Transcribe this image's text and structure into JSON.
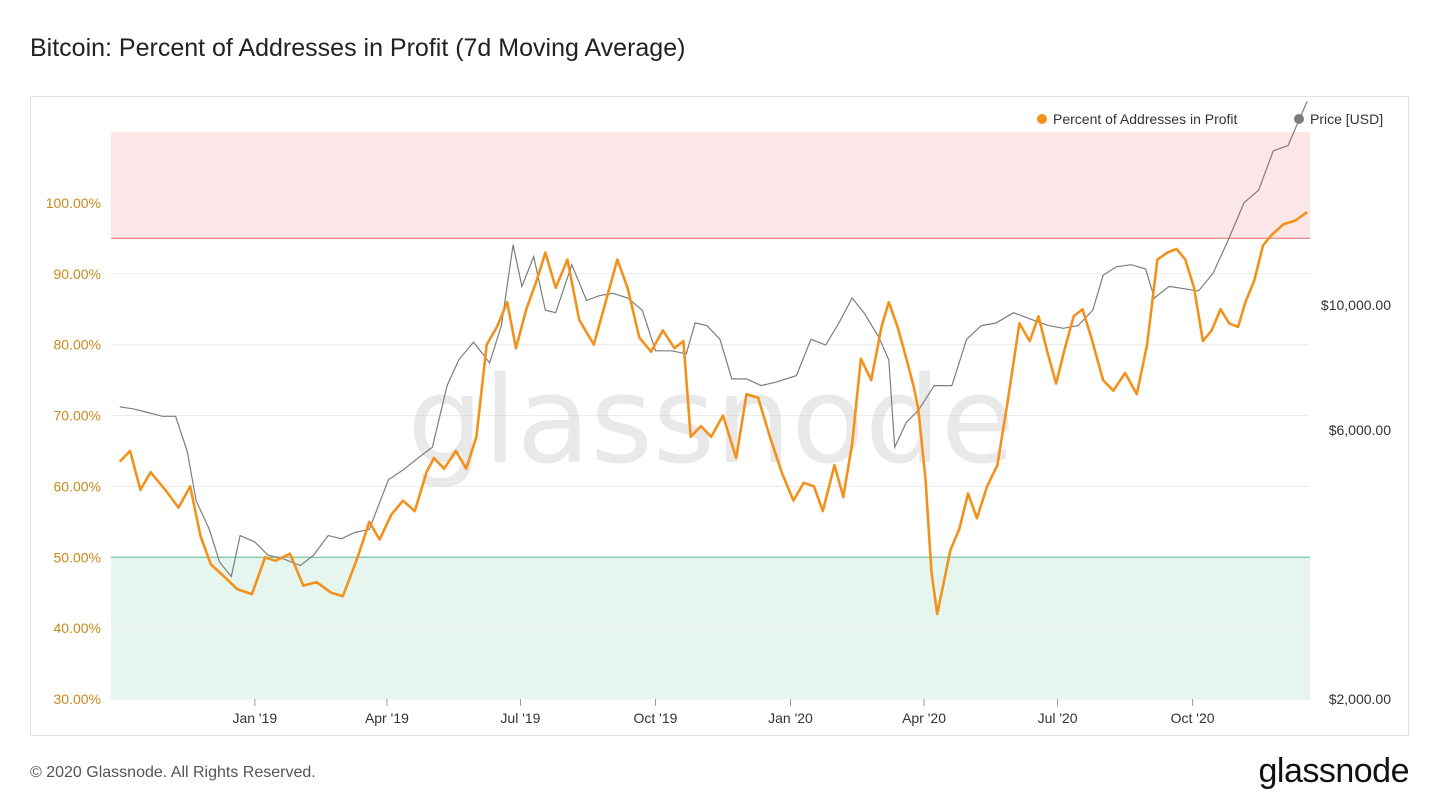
{
  "title": "Bitcoin: Percent of Addresses in Profit (7d Moving Average)",
  "footer": "© 2020 Glassnode. All Rights Reserved.",
  "brand": "glassnode",
  "watermark": "glassnode",
  "colors": {
    "profit": "#f2921d",
    "price": "#7d7d7d",
    "upper_zone": "#fde6e7",
    "upper_line": "#e57b7e",
    "lower_zone": "#e6f6ee",
    "lower_line": "#7cc7a0",
    "grid": "#ececec"
  },
  "chart_data": {
    "type": "line",
    "x_ticks": [
      "Jan '19",
      "Apr '19",
      "Jul '19",
      "Oct '19",
      "Jan '20",
      "Apr '20",
      "Jul '20",
      "Oct '20"
    ],
    "y_left_ticks": [
      "30.00%",
      "40.00%",
      "50.00%",
      "60.00%",
      "70.00%",
      "80.00%",
      "90.00%",
      "100.00%"
    ],
    "y_left_lim": [
      30,
      110
    ],
    "y_right_ticks": [
      "$2,000.00",
      "$6,000.00",
      "$10,000.00"
    ],
    "y_right_scale": "log",
    "y_right_lim": [
      2000,
      20300
    ],
    "bands": {
      "upper_threshold": 95,
      "lower_threshold": 50
    },
    "legend_position": "top-right",
    "grid": true,
    "series": [
      {
        "name": "Percent of Addresses in Profit",
        "axis": "left",
        "points": [
          [
            "2018-10-01",
            63.5
          ],
          [
            "2018-10-08",
            65
          ],
          [
            "2018-10-15",
            59.5
          ],
          [
            "2018-10-22",
            62
          ],
          [
            "2018-11-01",
            59.5
          ],
          [
            "2018-11-10",
            57
          ],
          [
            "2018-11-18",
            60
          ],
          [
            "2018-11-25",
            53
          ],
          [
            "2018-12-02",
            49
          ],
          [
            "2018-12-10",
            47.5
          ],
          [
            "2018-12-20",
            45.5
          ],
          [
            "2018-12-30",
            44.8
          ],
          [
            "2019-01-08",
            50
          ],
          [
            "2019-01-15",
            49.5
          ],
          [
            "2019-01-25",
            50.5
          ],
          [
            "2019-02-03",
            46
          ],
          [
            "2019-02-12",
            46.5
          ],
          [
            "2019-02-22",
            45
          ],
          [
            "2019-03-02",
            44.5
          ],
          [
            "2019-03-12",
            50
          ],
          [
            "2019-03-20",
            55
          ],
          [
            "2019-03-27",
            52.5
          ],
          [
            "2019-04-04",
            56
          ],
          [
            "2019-04-12",
            58
          ],
          [
            "2019-04-20",
            56.5
          ],
          [
            "2019-04-28",
            62
          ],
          [
            "2019-05-03",
            64
          ],
          [
            "2019-05-10",
            62.5
          ],
          [
            "2019-05-18",
            65
          ],
          [
            "2019-05-25",
            62.5
          ],
          [
            "2019-06-01",
            67
          ],
          [
            "2019-06-08",
            80
          ],
          [
            "2019-06-15",
            82.5
          ],
          [
            "2019-06-22",
            86
          ],
          [
            "2019-06-28",
            79.5
          ],
          [
            "2019-07-05",
            85
          ],
          [
            "2019-07-12",
            89
          ],
          [
            "2019-07-18",
            93
          ],
          [
            "2019-07-25",
            88
          ],
          [
            "2019-08-02",
            92
          ],
          [
            "2019-08-10",
            83.5
          ],
          [
            "2019-08-20",
            80
          ],
          [
            "2019-08-28",
            86
          ],
          [
            "2019-09-05",
            92
          ],
          [
            "2019-09-12",
            88
          ],
          [
            "2019-09-20",
            81
          ],
          [
            "2019-09-28",
            79
          ],
          [
            "2019-10-06",
            82
          ],
          [
            "2019-10-14",
            79.5
          ],
          [
            "2019-10-20",
            80.5
          ],
          [
            "2019-10-25",
            67
          ],
          [
            "2019-11-01",
            68.5
          ],
          [
            "2019-11-08",
            67
          ],
          [
            "2019-11-16",
            70
          ],
          [
            "2019-11-25",
            64
          ],
          [
            "2019-12-02",
            73
          ],
          [
            "2019-12-10",
            72.5
          ],
          [
            "2019-12-18",
            67
          ],
          [
            "2019-12-26",
            62
          ],
          [
            "2020-01-03",
            58
          ],
          [
            "2020-01-10",
            60.5
          ],
          [
            "2020-01-17",
            60
          ],
          [
            "2020-01-23",
            56.5
          ],
          [
            "2020-01-31",
            63
          ],
          [
            "2020-02-06",
            58.5
          ],
          [
            "2020-02-12",
            66
          ],
          [
            "2020-02-18",
            78
          ],
          [
            "2020-02-25",
            75
          ],
          [
            "2020-03-03",
            82.5
          ],
          [
            "2020-03-08",
            86
          ],
          [
            "2020-03-14",
            82.5
          ],
          [
            "2020-03-20",
            78
          ],
          [
            "2020-03-25",
            74
          ],
          [
            "2020-03-28",
            71
          ],
          [
            "2020-04-02",
            61
          ],
          [
            "2020-04-06",
            48
          ],
          [
            "2020-04-10",
            42
          ],
          [
            "2020-04-14",
            46
          ],
          [
            "2020-04-19",
            51
          ],
          [
            "2020-04-25",
            54
          ],
          [
            "2020-05-01",
            59
          ],
          [
            "2020-05-07",
            55.5
          ],
          [
            "2020-05-14",
            60
          ],
          [
            "2020-05-21",
            63
          ],
          [
            "2020-05-28",
            72
          ],
          [
            "2020-06-05",
            83
          ],
          [
            "2020-06-12",
            80.5
          ],
          [
            "2020-06-18",
            84
          ],
          [
            "2020-06-24",
            79
          ],
          [
            "2020-06-30",
            74.5
          ],
          [
            "2020-07-06",
            79.5
          ],
          [
            "2020-07-12",
            84
          ],
          [
            "2020-07-18",
            85
          ],
          [
            "2020-07-24",
            81
          ],
          [
            "2020-08-01",
            75
          ],
          [
            "2020-08-08",
            73.5
          ],
          [
            "2020-08-16",
            76
          ],
          [
            "2020-08-24",
            73
          ],
          [
            "2020-08-31",
            80
          ],
          [
            "2020-09-07",
            92
          ],
          [
            "2020-09-14",
            93
          ],
          [
            "2020-09-20",
            93.5
          ],
          [
            "2020-09-26",
            92
          ],
          [
            "2020-10-02",
            88
          ],
          [
            "2020-10-08",
            80.5
          ],
          [
            "2020-10-14",
            82
          ],
          [
            "2020-10-20",
            85
          ],
          [
            "2020-10-26",
            83
          ],
          [
            "2020-11-01",
            82.5
          ],
          [
            "2020-11-06",
            86
          ],
          [
            "2020-11-12",
            89
          ],
          [
            "2020-11-18",
            94
          ],
          [
            "2020-11-24",
            95.5
          ],
          [
            "2020-12-02",
            97
          ],
          [
            "2020-12-10",
            97.5
          ],
          [
            "2020-12-18",
            98.7
          ]
        ]
      },
      {
        "name": "Price [USD]",
        "axis": "right",
        "points": [
          [
            "2018-10-01",
            6600
          ],
          [
            "2018-10-10",
            6550
          ],
          [
            "2018-10-20",
            6450
          ],
          [
            "2018-10-30",
            6350
          ],
          [
            "2018-11-08",
            6350
          ],
          [
            "2018-11-16",
            5500
          ],
          [
            "2018-11-22",
            4500
          ],
          [
            "2018-12-01",
            4000
          ],
          [
            "2018-12-08",
            3500
          ],
          [
            "2018-12-16",
            3300
          ],
          [
            "2018-12-22",
            3900
          ],
          [
            "2019-01-01",
            3800
          ],
          [
            "2019-01-10",
            3600
          ],
          [
            "2019-01-20",
            3550
          ],
          [
            "2019-02-01",
            3450
          ],
          [
            "2019-02-10",
            3600
          ],
          [
            "2019-02-20",
            3900
          ],
          [
            "2019-03-01",
            3850
          ],
          [
            "2019-03-10",
            3950
          ],
          [
            "2019-03-20",
            4000
          ],
          [
            "2019-04-02",
            4900
          ],
          [
            "2019-04-12",
            5100
          ],
          [
            "2019-04-22",
            5350
          ],
          [
            "2019-05-02",
            5600
          ],
          [
            "2019-05-12",
            7200
          ],
          [
            "2019-05-20",
            8000
          ],
          [
            "2019-05-30",
            8600
          ],
          [
            "2019-06-10",
            7900
          ],
          [
            "2019-06-18",
            9200
          ],
          [
            "2019-06-26",
            12800
          ],
          [
            "2019-07-02",
            10800
          ],
          [
            "2019-07-10",
            12200
          ],
          [
            "2019-07-18",
            9800
          ],
          [
            "2019-07-25",
            9700
          ],
          [
            "2019-08-05",
            11800
          ],
          [
            "2019-08-15",
            10200
          ],
          [
            "2019-08-24",
            10400
          ],
          [
            "2019-09-02",
            10500
          ],
          [
            "2019-09-12",
            10300
          ],
          [
            "2019-09-22",
            9800
          ],
          [
            "2019-10-01",
            8300
          ],
          [
            "2019-10-12",
            8300
          ],
          [
            "2019-10-22",
            8200
          ],
          [
            "2019-10-28",
            9300
          ],
          [
            "2019-11-05",
            9200
          ],
          [
            "2019-11-14",
            8700
          ],
          [
            "2019-11-22",
            7400
          ],
          [
            "2019-12-02",
            7400
          ],
          [
            "2019-12-12",
            7200
          ],
          [
            "2019-12-22",
            7300
          ],
          [
            "2020-01-05",
            7500
          ],
          [
            "2020-01-15",
            8700
          ],
          [
            "2020-01-25",
            8500
          ],
          [
            "2020-02-03",
            9300
          ],
          [
            "2020-02-12",
            10300
          ],
          [
            "2020-02-20",
            9700
          ],
          [
            "2020-03-01",
            8800
          ],
          [
            "2020-03-08",
            8000
          ],
          [
            "2020-03-12",
            5600
          ],
          [
            "2020-03-20",
            6200
          ],
          [
            "2020-03-28",
            6500
          ],
          [
            "2020-04-08",
            7200
          ],
          [
            "2020-04-20",
            7200
          ],
          [
            "2020-04-30",
            8700
          ],
          [
            "2020-05-10",
            9200
          ],
          [
            "2020-05-20",
            9300
          ],
          [
            "2020-06-01",
            9700
          ],
          [
            "2020-06-15",
            9400
          ],
          [
            "2020-06-25",
            9200
          ],
          [
            "2020-07-05",
            9100
          ],
          [
            "2020-07-15",
            9200
          ],
          [
            "2020-07-25",
            9800
          ],
          [
            "2020-08-01",
            11300
          ],
          [
            "2020-08-10",
            11700
          ],
          [
            "2020-08-20",
            11800
          ],
          [
            "2020-08-30",
            11600
          ],
          [
            "2020-09-05",
            10300
          ],
          [
            "2020-09-15",
            10800
          ],
          [
            "2020-09-25",
            10700
          ],
          [
            "2020-10-05",
            10600
          ],
          [
            "2020-10-15",
            11400
          ],
          [
            "2020-10-25",
            13000
          ],
          [
            "2020-11-05",
            15200
          ],
          [
            "2020-11-15",
            16000
          ],
          [
            "2020-11-25",
            18800
          ],
          [
            "2020-12-05",
            19200
          ],
          [
            "2020-12-18",
            23000
          ]
        ]
      }
    ]
  }
}
